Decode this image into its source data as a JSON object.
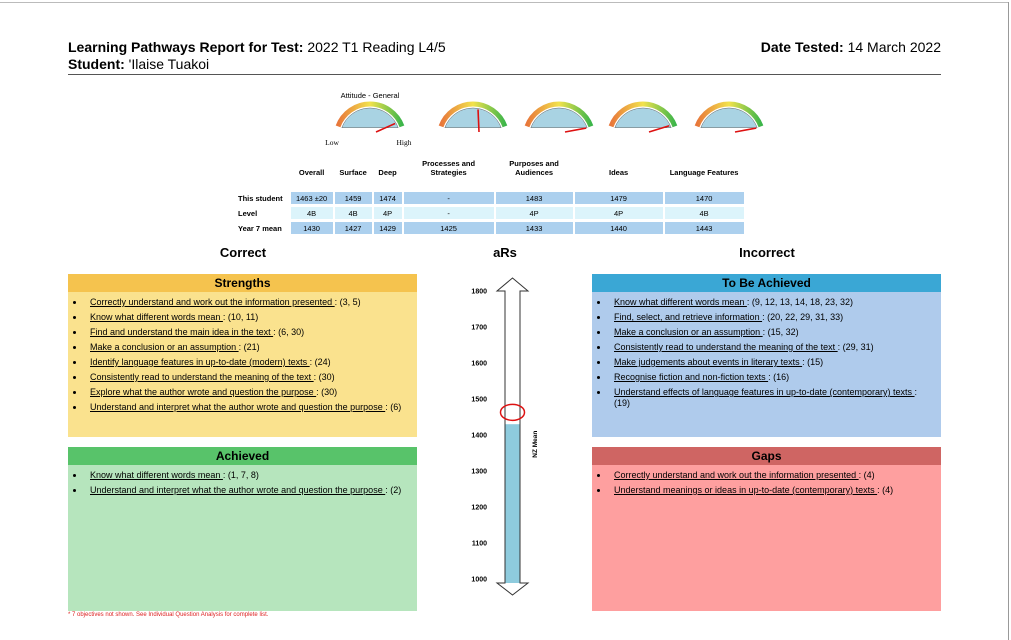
{
  "header": {
    "title_label": "Learning Pathways Report for Test:",
    "title_value": "2022 T1 Reading L4/5",
    "date_label": "Date Tested:",
    "date_value": "14 March 2022",
    "student_label": "Student:",
    "student_value": "'Ilaise Tuakoi"
  },
  "gauges": {
    "caption": "Attitude - General",
    "low": "Low",
    "high": "High"
  },
  "table": {
    "columns": [
      "Overall",
      "Surface",
      "Deep",
      "Processes and Strategies",
      "Purposes and Audiences",
      "Ideas",
      "Language Features"
    ],
    "rows": [
      {
        "label": "This student",
        "cells": [
          "1463 ±20",
          "1459",
          "1474",
          "-",
          "1483",
          "1479",
          "1470"
        ]
      },
      {
        "label": "Level",
        "cells": [
          "4B",
          "4B",
          "4P",
          "-",
          "4P",
          "4P",
          "4B"
        ]
      },
      {
        "label": "Year 7 mean",
        "cells": [
          "1430",
          "1427",
          "1429",
          "1425",
          "1433",
          "1440",
          "1443"
        ]
      }
    ]
  },
  "sections": {
    "correct": "Correct",
    "scale": "aRs",
    "incorrect": "Incorrect"
  },
  "panels": {
    "strengths": {
      "title": "Strengths",
      "items": [
        {
          "text": "Correctly understand and work out the information presented ",
          "refs": ": (3, 5)"
        },
        {
          "text": "Know what different words mean ",
          "refs": ": (10, 11)"
        },
        {
          "text": "Find and understand the main idea in the text ",
          "refs": ": (6, 30)"
        },
        {
          "text": "Make a conclusion or an assumption ",
          "refs": ": (21)"
        },
        {
          "text": "Identify language features in up-to-date (modern) texts ",
          "refs": ": (24)"
        },
        {
          "text": "Consistently read to understand the meaning of the text ",
          "refs": ": (30)"
        },
        {
          "text": "Explore what the author wrote and question the purpose ",
          "refs": ": (30)"
        },
        {
          "text": "Understand and interpret what the author wrote and question the purpose ",
          "refs": ": (6)"
        }
      ]
    },
    "achieved": {
      "title": "Achieved",
      "items": [
        {
          "text": "Know what different words mean ",
          "refs": ": (1, 7, 8)"
        },
        {
          "text": "Understand and interpret what the author wrote and question the purpose ",
          "refs": ": (2)"
        }
      ]
    },
    "to_be_achieved": {
      "title": "To Be Achieved",
      "items": [
        {
          "text": "Know what different words mean ",
          "refs": ": (9, 12, 13, 14, 18, 23, 32)"
        },
        {
          "text": "Find, select, and retrieve information ",
          "refs": ": (20, 22, 29, 31, 33)"
        },
        {
          "text": "Make a conclusion or an assumption ",
          "refs": ": (15, 32)"
        },
        {
          "text": "Consistently read to understand the meaning of the text ",
          "refs": ": (29, 31)"
        },
        {
          "text": "Make judgements about events in literary texts ",
          "refs": ": (15)"
        },
        {
          "text": "Recognise fiction and non-fiction texts ",
          "refs": ": (16)"
        },
        {
          "text": "Understand effects of language features in up-to-date (contemporary) texts ",
          "refs": ": (19)"
        }
      ]
    },
    "gaps": {
      "title": "Gaps",
      "items": [
        {
          "text": "Correctly understand and work out the information presented ",
          "refs": ": (4)"
        },
        {
          "text": "Understand meanings or ideas in up-to-date (contemporary) texts ",
          "refs": ": (4)"
        }
      ]
    }
  },
  "scale": {
    "ticks": [
      1800,
      1700,
      1600,
      1500,
      1400,
      1300,
      1200,
      1100,
      1000
    ],
    "student_marker": 1463,
    "nz_mean": 1430,
    "nz_mean_label": "NZ Mean"
  },
  "footnote": "* 7 objectives not shown. See Individual Question Analysis for complete list."
}
